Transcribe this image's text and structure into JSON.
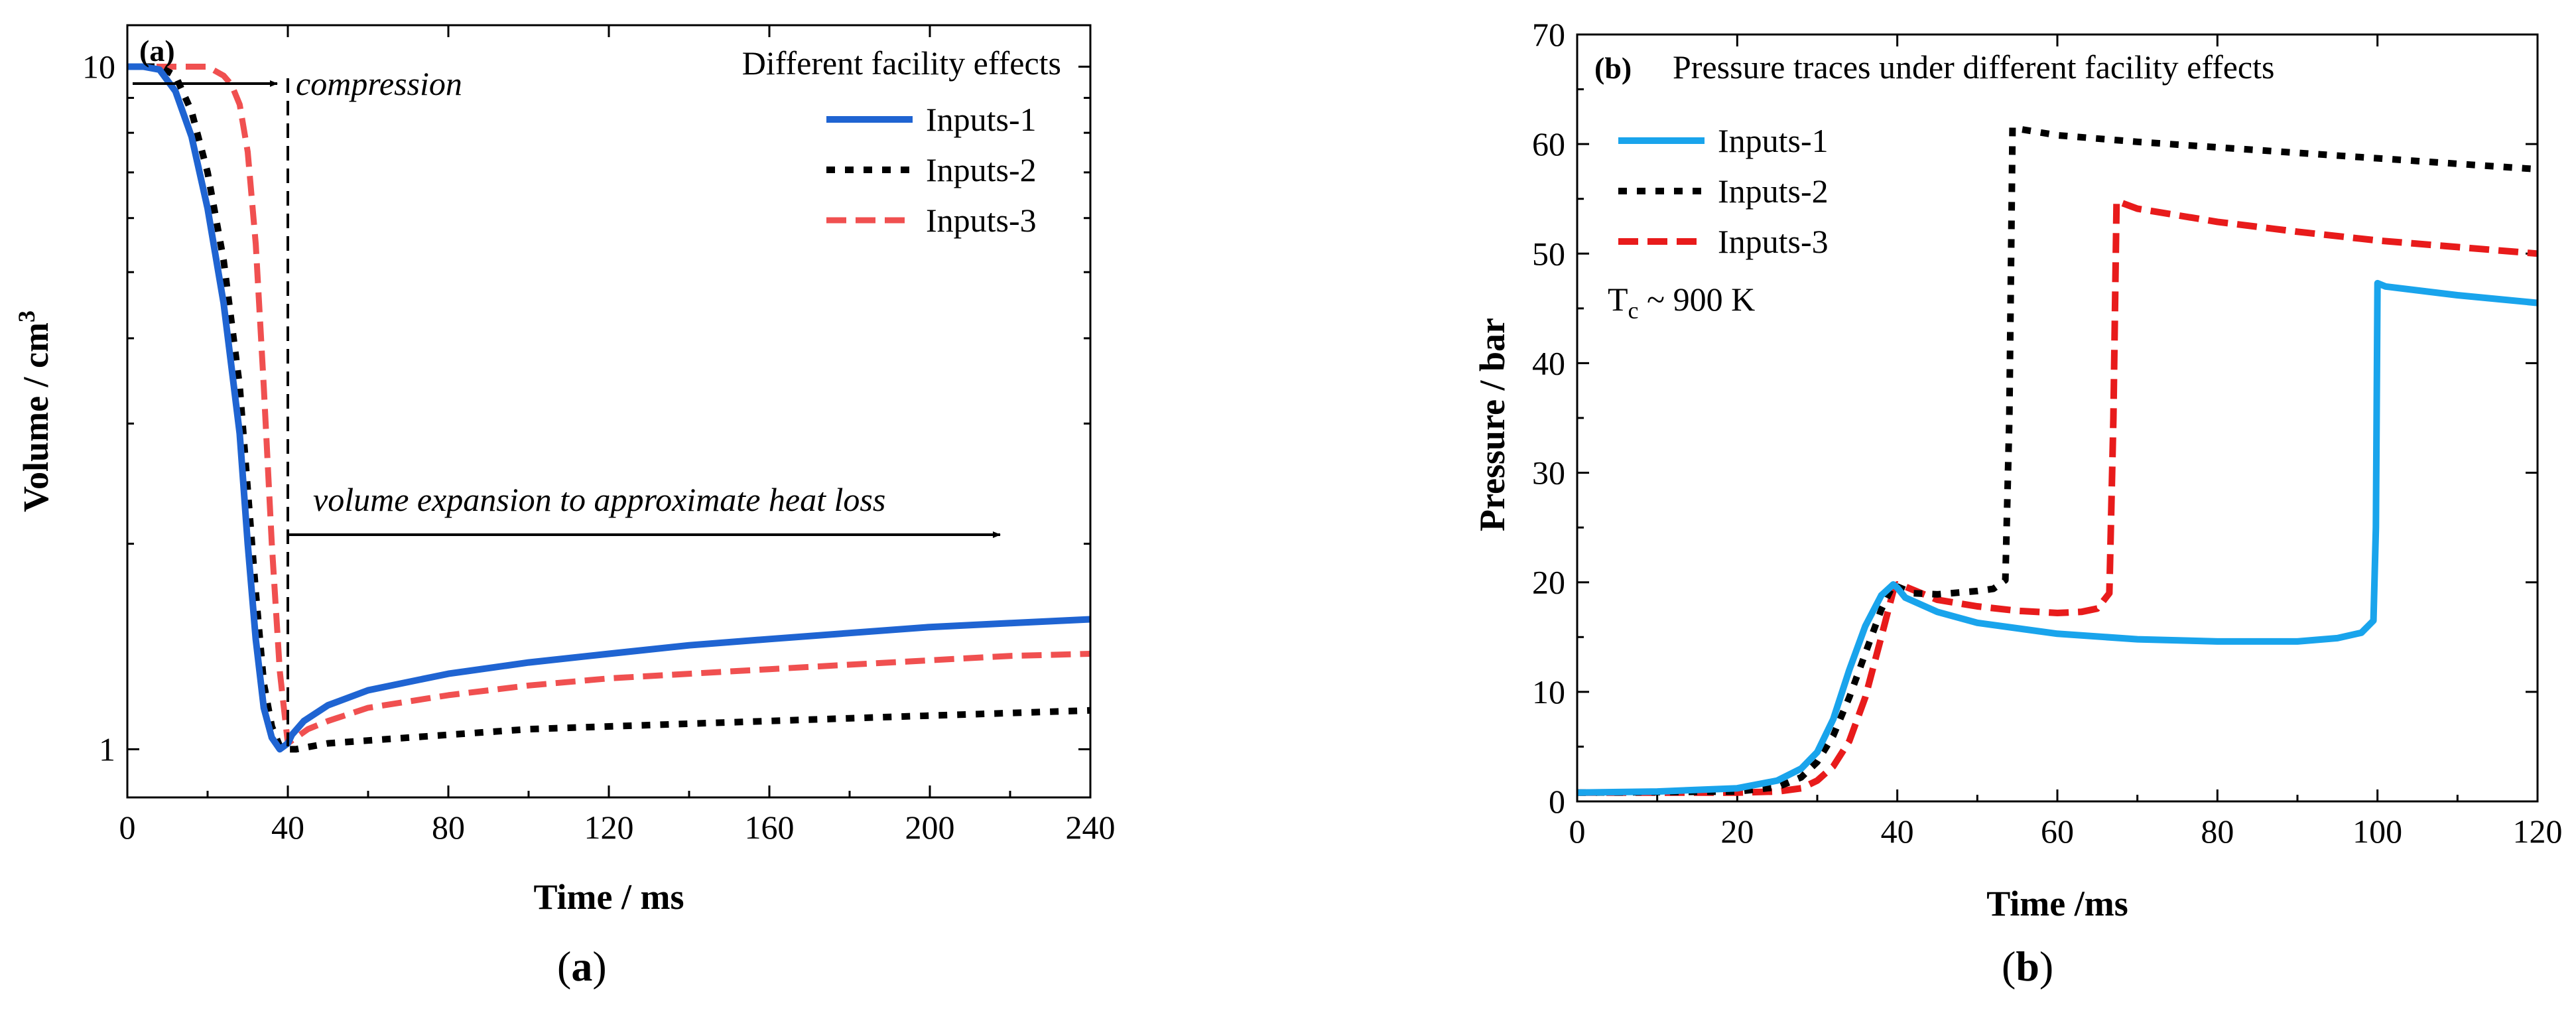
{
  "colors": {
    "inputs1_a": "#1f64d2",
    "inputs1_b": "#19a4ec",
    "inputs2": "#000000",
    "inputs3_a": "#f05050",
    "inputs3_b": "#e81b1b",
    "axis": "#000000"
  },
  "chart_data": [
    {
      "id": "a",
      "type": "line",
      "panel_label": "(a)",
      "caption": "a",
      "title": "Different facility effects",
      "xlabel": "Time / ms",
      "ylabel": "Volume / cm",
      "ylabel_sup": "3",
      "xlim": [
        0,
        240
      ],
      "ylim": [
        0.85,
        11.5
      ],
      "yscale": "log",
      "xticks": [
        0,
        40,
        80,
        120,
        160,
        200,
        240
      ],
      "yticks": [
        1,
        10
      ],
      "legend_position": "top-right",
      "annotations": {
        "compression": "compression",
        "expansion": "volume expansion to approximate heat loss"
      },
      "series": [
        {
          "name": "Inputs-1",
          "style": "solid",
          "x": [
            0,
            4,
            8,
            12,
            16,
            20,
            24,
            28,
            30,
            32,
            34,
            36,
            38,
            40,
            41,
            44,
            50,
            60,
            80,
            100,
            120,
            140,
            160,
            180,
            200,
            220,
            240
          ],
          "y": [
            10,
            10,
            9.9,
            9.2,
            7.9,
            6.2,
            4.5,
            2.9,
            2.0,
            1.45,
            1.15,
            1.04,
            1.0,
            1.02,
            1.05,
            1.1,
            1.16,
            1.22,
            1.29,
            1.34,
            1.38,
            1.42,
            1.45,
            1.48,
            1.51,
            1.53,
            1.55
          ]
        },
        {
          "name": "Inputs-2",
          "style": "dotted",
          "x": [
            0,
            4,
            8,
            12,
            16,
            20,
            24,
            28,
            30,
            32,
            34,
            36,
            38,
            40,
            42,
            50,
            60,
            80,
            100,
            120,
            140,
            160,
            180,
            200,
            220,
            240
          ],
          "y": [
            10,
            10,
            10,
            9.7,
            8.6,
            7.0,
            5.2,
            3.4,
            2.4,
            1.7,
            1.25,
            1.08,
            1.01,
            1.0,
            1.0,
            1.02,
            1.03,
            1.05,
            1.07,
            1.08,
            1.09,
            1.1,
            1.11,
            1.12,
            1.13,
            1.14
          ]
        },
        {
          "name": "Inputs-3",
          "style": "dashed",
          "x": [
            0,
            10,
            20,
            24,
            26,
            28,
            30,
            32,
            34,
            36,
            38,
            40,
            42,
            45,
            50,
            60,
            80,
            100,
            120,
            140,
            160,
            180,
            200,
            220,
            240
          ],
          "y": [
            10,
            10,
            10,
            9.7,
            9.4,
            8.8,
            7.5,
            5.5,
            3.4,
            2.0,
            1.3,
            1.02,
            1.04,
            1.07,
            1.1,
            1.15,
            1.2,
            1.24,
            1.27,
            1.29,
            1.31,
            1.33,
            1.35,
            1.37,
            1.38
          ]
        }
      ]
    },
    {
      "id": "b",
      "type": "line",
      "panel_label": "(b)",
      "caption": "b",
      "title": "Pressure traces under different facility effects",
      "xlabel": "Time /ms",
      "ylabel": "Pressure / bar",
      "xlim": [
        0,
        120
      ],
      "ylim": [
        0,
        70
      ],
      "xticks": [
        0,
        20,
        40,
        60,
        80,
        100,
        120
      ],
      "yticks": [
        0,
        10,
        20,
        30,
        40,
        50,
        60,
        70
      ],
      "legend_position": "top-left",
      "annotation": {
        "prefix": "T",
        "subscript": "c",
        "suffix": " ~ 900 K"
      },
      "series": [
        {
          "name": "Inputs-1",
          "style": "solid",
          "x": [
            0,
            10,
            20,
            25,
            28,
            30,
            32,
            34,
            36,
            38,
            39.5,
            40,
            41,
            45,
            50,
            60,
            70,
            80,
            90,
            95,
            98,
            99.5,
            99.8,
            100,
            101,
            110,
            120
          ],
          "y": [
            0.8,
            0.9,
            1.2,
            1.9,
            3.0,
            4.5,
            7.5,
            12,
            16,
            18.8,
            19.8,
            19.5,
            18.6,
            17.3,
            16.3,
            15.3,
            14.8,
            14.6,
            14.6,
            14.9,
            15.4,
            16.5,
            25,
            47.3,
            47.0,
            46.2,
            45.5
          ]
        },
        {
          "name": "Inputs-2",
          "style": "dotted",
          "x": [
            0,
            20,
            25,
            28,
            30,
            32,
            34,
            36,
            38,
            39.5,
            40,
            42,
            45,
            50,
            52,
            53.5,
            54,
            54.4,
            55,
            60,
            70,
            80,
            90,
            100,
            110,
            120
          ],
          "y": [
            0.8,
            0.9,
            1.3,
            2.2,
            3.6,
            6,
            9.5,
            13.5,
            17.5,
            19.8,
            19.6,
            19.0,
            18.9,
            19.2,
            19.4,
            20.2,
            35,
            61.5,
            61.4,
            60.8,
            60.2,
            59.7,
            59.2,
            58.7,
            58.2,
            57.7
          ]
        },
        {
          "name": "Inputs-3",
          "style": "dashed",
          "x": [
            0,
            20,
            25,
            28,
            30,
            32,
            34,
            36,
            38,
            39.5,
            40,
            41,
            45,
            50,
            55,
            60,
            63,
            65,
            66.5,
            67,
            67.4,
            70,
            80,
            90,
            100,
            110,
            120
          ],
          "y": [
            0.8,
            0.8,
            0.9,
            1.2,
            1.9,
            3.2,
            5.5,
            9.5,
            15,
            19.2,
            19.8,
            19.6,
            18.4,
            17.8,
            17.4,
            17.2,
            17.3,
            17.6,
            19.0,
            35,
            54.8,
            54.1,
            52.9,
            52.0,
            51.2,
            50.6,
            50.0
          ]
        }
      ]
    }
  ]
}
